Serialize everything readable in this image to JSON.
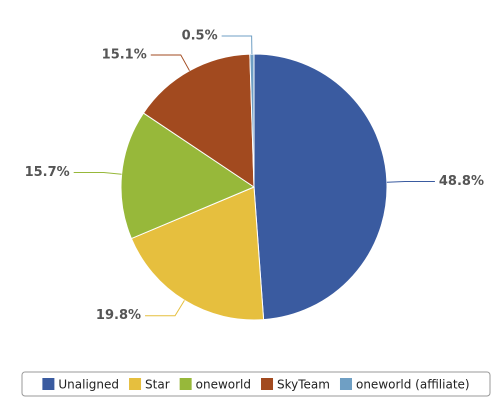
{
  "chart_data": {
    "type": "pie",
    "categories": [
      "Unaligned",
      "Star",
      "oneworld",
      "SkyTeam",
      "oneworld (affiliate)"
    ],
    "values": [
      48.8,
      19.8,
      15.7,
      15.1,
      0.5
    ],
    "value_labels": [
      "48.8%",
      "19.8%",
      "15.7%",
      "15.1%",
      "0.5%"
    ],
    "colors": [
      "#3a5ba0",
      "#e6bf3e",
      "#97b83a",
      "#a24a1f",
      "#6f9fc4"
    ],
    "legend": "bottom"
  }
}
